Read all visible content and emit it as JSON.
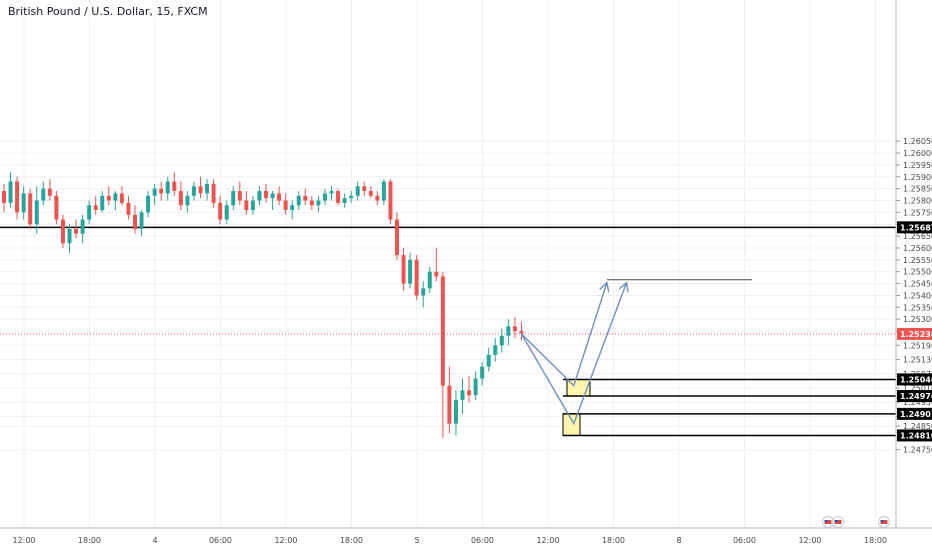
{
  "header": {
    "title": "British Pound / U.S. Dollar, 15, FXCM"
  },
  "colors": {
    "up": "#26a69a",
    "down": "#ef5350",
    "grid": "#eef0f3",
    "axis_text": "#4a4a4a",
    "level_line": "#000000",
    "current_line": "#ef5350",
    "zone_fill": "#fff59d",
    "arrow": "#6f8fc4"
  },
  "chart_data": {
    "type": "candlestick",
    "title": "British Pound / U.S. Dollar, 15, FXCM",
    "ylim": [
      1.2442,
      1.26645
    ],
    "y_ticks": [
      "1.26050",
      "1.26000",
      "1.25950",
      "1.25900",
      "1.25850",
      "1.25800",
      "1.25750",
      "1.25700",
      "1.25650",
      "1.25600",
      "1.25550",
      "1.25500",
      "1.25450",
      "1.25400",
      "1.25350",
      "1.25300",
      "1.25250",
      "1.25190",
      "1.25130",
      "1.25070",
      "1.25010",
      "1.24950",
      "1.24890",
      "1.24850",
      "1.24750"
    ],
    "x_ticks": [
      "12:00",
      "18:00",
      "4",
      "06:00",
      "12:00",
      "18:00",
      "5",
      "06:00",
      "12:00",
      "18:00",
      "8",
      "06:00",
      "12:00",
      "18:00"
    ],
    "grid": true,
    "price_labels": [
      {
        "label": "1.25687",
        "value": 1.25687,
        "kind": "level"
      },
      {
        "label": "1.25238",
        "value": 1.25238,
        "kind": "current"
      },
      {
        "label": "1.25046",
        "value": 1.25046,
        "kind": "level"
      },
      {
        "label": "1.24976",
        "value": 1.24976,
        "kind": "level"
      },
      {
        "label": "1.24901",
        "value": 1.24901,
        "kind": "level"
      },
      {
        "label": "1.24810",
        "value": 1.2481,
        "kind": "level"
      }
    ],
    "target_level": 1.25466,
    "demand_zones": [
      {
        "top": 1.25046,
        "bottom": 1.24976
      },
      {
        "top": 1.24901,
        "bottom": 1.2481
      }
    ],
    "projection_paths": [
      [
        [
          0,
          1.25238
        ],
        [
          8,
          1.2502
        ],
        [
          13,
          1.2545
        ]
      ],
      [
        [
          0,
          1.25238
        ],
        [
          8,
          1.2486
        ],
        [
          16,
          1.2545
        ]
      ]
    ],
    "series": [
      {
        "ohlc": [
          [
            1.2584,
            1.2587,
            1.2575,
            1.2579
          ],
          [
            1.2579,
            1.2592,
            1.2577,
            1.2588
          ],
          [
            1.2588,
            1.259,
            1.2572,
            1.2575
          ],
          [
            1.2575,
            1.2586,
            1.2572,
            1.2583
          ],
          [
            1.2583,
            1.2585,
            1.2568,
            1.257
          ],
          [
            1.257,
            1.2586,
            1.2566,
            1.258
          ],
          [
            1.258,
            1.2588,
            1.2578,
            1.2585
          ],
          [
            1.2585,
            1.2589,
            1.258,
            1.2582
          ],
          [
            1.2582,
            1.2584,
            1.257,
            1.2572
          ],
          [
            1.2572,
            1.2574,
            1.256,
            1.2562
          ],
          [
            1.2562,
            1.257,
            1.2558,
            1.2568
          ],
          [
            1.2568,
            1.2572,
            1.2564,
            1.2566
          ],
          [
            1.2566,
            1.2574,
            1.2562,
            1.2572
          ],
          [
            1.2572,
            1.258,
            1.257,
            1.2578
          ],
          [
            1.2578,
            1.2582,
            1.2574,
            1.2576
          ],
          [
            1.2576,
            1.2584,
            1.2575,
            1.2582
          ],
          [
            1.2582,
            1.2586,
            1.2578,
            1.258
          ],
          [
            1.258,
            1.2584,
            1.2576,
            1.2583
          ],
          [
            1.2583,
            1.2586,
            1.2578,
            1.2579
          ],
          [
            1.2579,
            1.2582,
            1.2572,
            1.2574
          ],
          [
            1.2574,
            1.2578,
            1.2566,
            1.2568
          ],
          [
            1.2568,
            1.2576,
            1.2565,
            1.2575
          ],
          [
            1.2575,
            1.2584,
            1.2573,
            1.2582
          ],
          [
            1.2582,
            1.2587,
            1.2578,
            1.2585
          ],
          [
            1.2585,
            1.2588,
            1.258,
            1.2583
          ],
          [
            1.2583,
            1.259,
            1.258,
            1.2588
          ],
          [
            1.2588,
            1.2592,
            1.2582,
            1.2584
          ],
          [
            1.2584,
            1.2588,
            1.2576,
            1.2578
          ],
          [
            1.2578,
            1.2584,
            1.2575,
            1.2582
          ],
          [
            1.2582,
            1.2588,
            1.258,
            1.2586
          ],
          [
            1.2586,
            1.259,
            1.2581,
            1.2583
          ],
          [
            1.2583,
            1.2589,
            1.258,
            1.2587
          ],
          [
            1.2587,
            1.2589,
            1.2577,
            1.2579
          ],
          [
            1.2579,
            1.2582,
            1.257,
            1.2572
          ],
          [
            1.2572,
            1.258,
            1.257,
            1.2578
          ],
          [
            1.2578,
            1.2586,
            1.2576,
            1.2584
          ],
          [
            1.2584,
            1.2588,
            1.2578,
            1.258
          ],
          [
            1.258,
            1.2584,
            1.2574,
            1.2576
          ],
          [
            1.2576,
            1.2582,
            1.2574,
            1.258
          ],
          [
            1.258,
            1.2586,
            1.2578,
            1.2584
          ],
          [
            1.2584,
            1.2587,
            1.2579,
            1.2581
          ],
          [
            1.2581,
            1.2584,
            1.2576,
            1.2583
          ],
          [
            1.2583,
            1.2586,
            1.2578,
            1.258
          ],
          [
            1.258,
            1.2583,
            1.2574,
            1.2576
          ],
          [
            1.2576,
            1.258,
            1.2572,
            1.2578
          ],
          [
            1.2578,
            1.2584,
            1.2576,
            1.2582
          ],
          [
            1.2582,
            1.2585,
            1.2578,
            1.258
          ],
          [
            1.258,
            1.2582,
            1.2576,
            1.2578
          ],
          [
            1.2578,
            1.2582,
            1.2575,
            1.258
          ],
          [
            1.258,
            1.2585,
            1.2578,
            1.2583
          ],
          [
            1.2583,
            1.2586,
            1.258,
            1.2584
          ],
          [
            1.2584,
            1.2585,
            1.2578,
            1.2579
          ],
          [
            1.2579,
            1.2583,
            1.2577,
            1.2581
          ],
          [
            1.2581,
            1.2584,
            1.2579,
            1.2582
          ],
          [
            1.2582,
            1.2588,
            1.258,
            1.2586
          ],
          [
            1.2586,
            1.2588,
            1.2582,
            1.2584
          ],
          [
            1.2584,
            1.2586,
            1.2581,
            1.2582
          ],
          [
            1.2582,
            1.2584,
            1.2578,
            1.258
          ],
          [
            1.258,
            1.2589,
            1.2578,
            1.2588
          ],
          [
            1.2588,
            1.2589,
            1.257,
            1.2572
          ],
          [
            1.2572,
            1.2575,
            1.2555,
            1.2557
          ],
          [
            1.2557,
            1.256,
            1.2542,
            1.2545
          ],
          [
            1.2545,
            1.2558,
            1.2543,
            1.2555
          ],
          [
            1.2555,
            1.2557,
            1.2538,
            1.254
          ],
          [
            1.254,
            1.2546,
            1.2535,
            1.2543
          ],
          [
            1.2543,
            1.2552,
            1.2541,
            1.255
          ],
          [
            1.255,
            1.256,
            1.2546,
            1.2548
          ],
          [
            1.2548,
            1.255,
            1.248,
            1.2502
          ],
          [
            1.2502,
            1.251,
            1.2482,
            1.2486
          ],
          [
            1.2486,
            1.25,
            1.2481,
            1.2496
          ],
          [
            1.2496,
            1.2505,
            1.249,
            1.25
          ],
          [
            1.25,
            1.2506,
            1.2495,
            1.2498
          ],
          [
            1.2498,
            1.2508,
            1.2496,
            1.2505
          ],
          [
            1.2505,
            1.2512,
            1.2502,
            1.251
          ],
          [
            1.251,
            1.2518,
            1.2508,
            1.2515
          ],
          [
            1.2515,
            1.2522,
            1.2512,
            1.2519
          ],
          [
            1.2519,
            1.2526,
            1.2516,
            1.2523
          ],
          [
            1.2523,
            1.253,
            1.2519,
            1.2527
          ],
          [
            1.2527,
            1.2531,
            1.2522,
            1.2525
          ],
          [
            1.2525,
            1.2529,
            1.2521,
            1.2524
          ]
        ]
      }
    ]
  }
}
